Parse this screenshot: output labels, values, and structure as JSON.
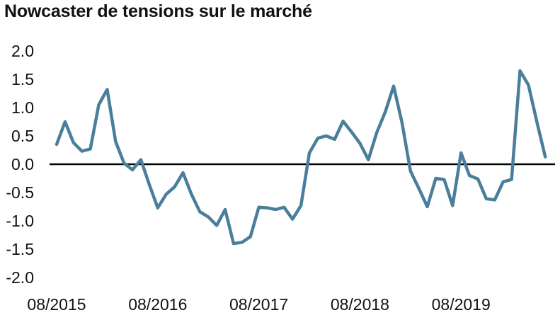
{
  "chart_data": {
    "type": "line",
    "title": "Nowcaster de tensions sur le marché",
    "xlabel": "",
    "ylabel": "",
    "ylim": [
      -2.0,
      2.0
    ],
    "yticks": [
      "2.0",
      "1.5",
      "1.0",
      "0.5",
      "0.0",
      "-0.5",
      "-1.0",
      "-1.5",
      "-2.0"
    ],
    "xticks": [
      "08/2015",
      "08/2016",
      "08/2017",
      "08/2018",
      "08/2019"
    ],
    "x": [
      "2015-08",
      "2015-09",
      "2015-10",
      "2015-11",
      "2015-12",
      "2016-01",
      "2016-02",
      "2016-03",
      "2016-04",
      "2016-05",
      "2016-06",
      "2016-07",
      "2016-08",
      "2016-09",
      "2016-10",
      "2016-11",
      "2016-12",
      "2017-01",
      "2017-02",
      "2017-03",
      "2017-04",
      "2017-05",
      "2017-06",
      "2017-07",
      "2017-08",
      "2017-09",
      "2017-10",
      "2017-11",
      "2017-12",
      "2018-01",
      "2018-02",
      "2018-03",
      "2018-04",
      "2018-05",
      "2018-06",
      "2018-07",
      "2018-08",
      "2018-09",
      "2018-10",
      "2018-11",
      "2018-12",
      "2019-01",
      "2019-02",
      "2019-03",
      "2019-04",
      "2019-05",
      "2019-06",
      "2019-07",
      "2019-08",
      "2019-09",
      "2019-10",
      "2019-11",
      "2019-12",
      "2020-01",
      "2020-02",
      "2020-03",
      "2020-04",
      "2020-05",
      "2020-06"
    ],
    "series": [
      {
        "values": [
          0.35,
          0.75,
          0.38,
          0.23,
          0.27,
          1.05,
          1.32,
          0.4,
          0.02,
          -0.1,
          0.08,
          -0.36,
          -0.77,
          -0.53,
          -0.4,
          -0.15,
          -0.53,
          -0.84,
          -0.93,
          -1.08,
          -0.8,
          -1.4,
          -1.38,
          -1.28,
          -0.76,
          -0.77,
          -0.8,
          -0.76,
          -0.97,
          -0.73,
          0.2,
          0.46,
          0.5,
          0.44,
          0.76,
          0.57,
          0.37,
          0.08,
          0.56,
          0.92,
          1.38,
          0.73,
          -0.12,
          -0.43,
          -0.75,
          -0.25,
          -0.27,
          -0.73,
          0.2,
          -0.2,
          -0.26,
          -0.61,
          -0.63,
          -0.31,
          -0.27,
          1.65,
          1.4,
          0.75,
          0.13
        ]
      }
    ],
    "line_color": "#4a7f9b",
    "zero_line_color": "#000000",
    "grid": false,
    "legend": "none"
  }
}
